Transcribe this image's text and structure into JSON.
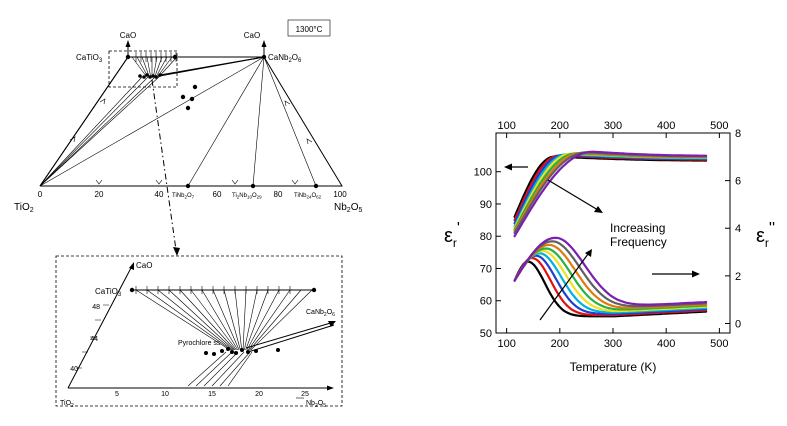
{
  "ternary": {
    "temperature_box": "1300°C",
    "cao_left": "CaO",
    "cao_right": "CaO",
    "catio3": "CaTiO",
    "catio3_sub": "3",
    "canb2o6": "CaNb",
    "canb2o6_sub1": "2",
    "canb2o6_o": "O",
    "canb2o6_sub2": "6",
    "tio2": "TiO",
    "tio2_sub": "2",
    "nb2o5": "Nb",
    "nb2o5_sub1": "2",
    "nb2o5_o": "O",
    "nb2o5_sub2": "5",
    "tick_labels": [
      "0",
      "20",
      "40",
      "60",
      "80",
      "100"
    ],
    "phases": [
      {
        "label": "TiNb",
        "sub1": "2",
        "o": "O",
        "sub2": "7"
      },
      {
        "label": "Ti",
        "sub0": "2",
        "nb": "Nb",
        "sub1": "10",
        "o": "O",
        "sub2": "29"
      },
      {
        "label": "TiNb",
        "sub1": "24",
        "o": "O",
        "sub2": "62"
      }
    ]
  },
  "inset": {
    "cao": "CaO",
    "catio3": "CaTiO",
    "catio3_sub": "3",
    "canb2o6": "CaNb",
    "canb2o6_sub1": "2",
    "canb2o6_o": "O",
    "canb2o6_sub2": "6",
    "pyrochlore": "Pyrochlore ss",
    "tio2": "TiO",
    "tio2_sub": "2",
    "nb2o5": "Nb",
    "nb2o5_sub1": "2",
    "nb2o5_o": "O",
    "nb2o5_sub2": "5",
    "y_ticks": [
      "48",
      "44",
      "40"
    ],
    "x_ticks": [
      "5",
      "10",
      "15",
      "20",
      "25"
    ]
  },
  "chart_data": {
    "type": "line",
    "xlabel": "Temperature (K)",
    "ylabel_left": "ε",
    "ylabel_left_sub": "r",
    "ylabel_left_prime": "'",
    "ylabel_right": "ε",
    "ylabel_right_sub": "r",
    "ylabel_right_prime": "''",
    "xlim": [
      80,
      520
    ],
    "ylim_left": [
      50,
      112
    ],
    "ylim_right": [
      -0.4,
      8
    ],
    "x_ticks": [
      100,
      200,
      300,
      400,
      500
    ],
    "y_left_ticks": [
      50,
      60,
      70,
      80,
      90,
      100
    ],
    "y_right_ticks": [
      0,
      2,
      4,
      6,
      8
    ],
    "annotation_line1": "Increasing",
    "annotation_line2": "Frequency",
    "series_colors": [
      "#000000",
      "#e01010",
      "#1f3fd0",
      "#00b0e0",
      "#f0e020",
      "#28b040",
      "#e07a10",
      "#606060",
      "#7a1fb0"
    ],
    "real_part": {
      "x_range": [
        115,
        475
      ],
      "low_start": [
        86,
        85,
        84,
        83,
        82.5,
        82,
        81.5,
        81,
        80
      ],
      "peak_x": [
        190,
        198,
        206,
        214,
        222,
        231,
        240,
        250,
        262
      ],
      "plateau": [
        103.5,
        103.8,
        104,
        104.2,
        104.4,
        104.5,
        104.6,
        104.8,
        105
      ]
    },
    "imag_part": {
      "x_range": [
        115,
        475
      ],
      "peak_x": [
        140,
        148,
        155,
        162,
        168,
        174,
        180,
        186,
        192
      ],
      "peak_y": [
        2.6,
        2.75,
        2.85,
        2.95,
        3.05,
        3.15,
        3.3,
        3.45,
        3.6
      ],
      "tail": [
        0.3,
        0.35,
        0.4,
        0.45,
        0.5,
        0.55,
        0.6,
        0.65,
        0.7
      ]
    }
  }
}
